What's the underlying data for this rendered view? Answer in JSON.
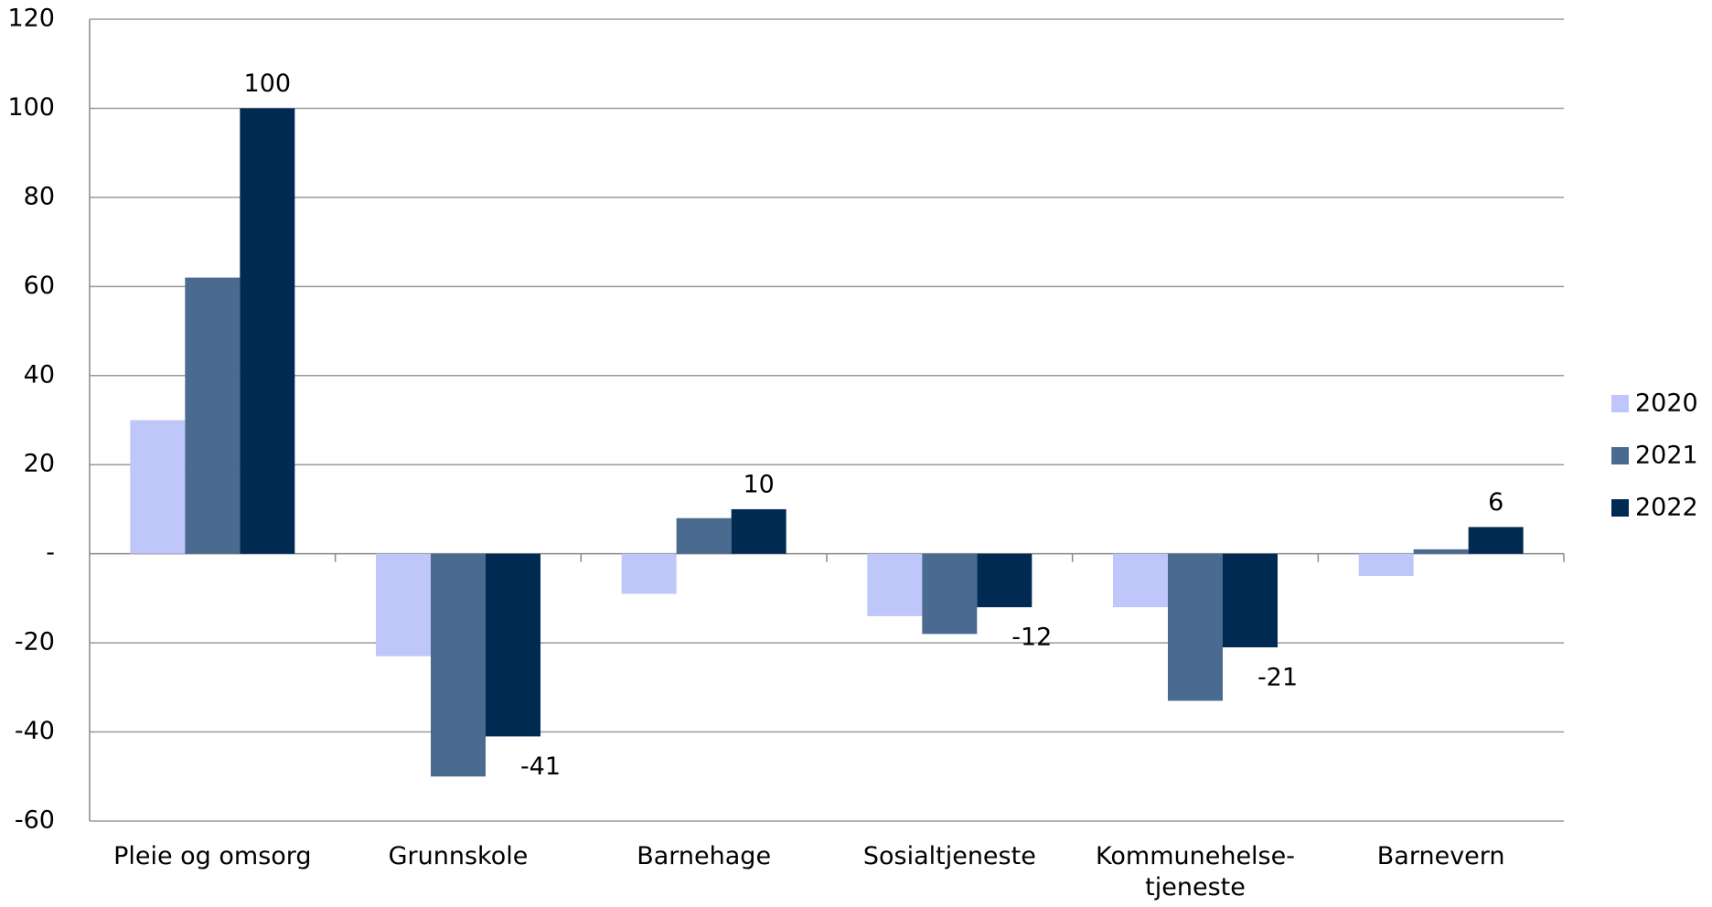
{
  "chart_data": {
    "type": "bar",
    "categories": [
      "Pleie og omsorg",
      "Grunnskole",
      "Barnehage",
      "Sosialtjeneste",
      "Kommunehelse-\ntjeneste",
      "Barnevern"
    ],
    "series": [
      {
        "name": "2020",
        "color": "#bfc6fa",
        "values": [
          30,
          -23,
          -9,
          -14,
          -12,
          -5
        ]
      },
      {
        "name": "2021",
        "color": "#4a6a90",
        "values": [
          62,
          -50,
          8,
          -18,
          -33,
          1
        ]
      },
      {
        "name": "2022",
        "color": "#012a52",
        "values": [
          100,
          -41,
          10,
          -12,
          -21,
          6
        ],
        "data_labels": true
      }
    ],
    "ylim": [
      -60,
      120
    ],
    "yticks": [
      -60,
      -40,
      -20,
      {
        "value": 0,
        "label": "-"
      },
      20,
      40,
      60,
      80,
      100,
      120
    ],
    "grid": true,
    "legend": "right"
  }
}
